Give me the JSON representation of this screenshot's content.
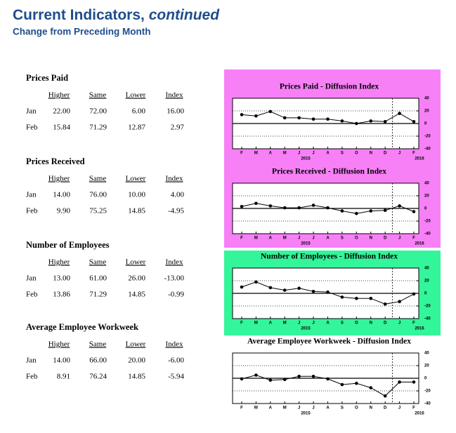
{
  "header": {
    "title": "Current Indicators,",
    "title_emphasis": "continued",
    "subtitle": "Change from Preceding Month"
  },
  "sections": [
    {
      "heading": "Prices Paid",
      "columns": [
        "Higher",
        "Same",
        "Lower",
        "Index"
      ],
      "rows": [
        [
          "Jan",
          "22.00",
          "72.00",
          "6.00",
          "16.00"
        ],
        [
          "Feb",
          "15.84",
          "71.29",
          "12.87",
          "2.97"
        ]
      ]
    },
    {
      "heading": "Prices Received",
      "columns": [
        "Higher",
        "Same",
        "Lower",
        "Index"
      ],
      "rows": [
        [
          "Jan",
          "14.00",
          "76.00",
          "10.00",
          "4.00"
        ],
        [
          "Feb",
          "9.90",
          "75.25",
          "14.85",
          "-4.95"
        ]
      ]
    },
    {
      "heading": "Number of Employees",
      "columns": [
        "Higher",
        "Same",
        "Lower",
        "Index"
      ],
      "rows": [
        [
          "Jan",
          "13.00",
          "61.00",
          "26.00",
          "-13.00"
        ],
        [
          "Feb",
          "13.86",
          "71.29",
          "14.85",
          "-0.99"
        ]
      ]
    },
    {
      "heading": "Average Employee Workweek",
      "columns": [
        "Higher",
        "Same",
        "Lower",
        "Index"
      ],
      "rows": [
        [
          "Jan",
          "14.00",
          "66.00",
          "20.00",
          "-6.00"
        ],
        [
          "Feb",
          "8.91",
          "76.24",
          "14.85",
          "-5.94"
        ]
      ]
    }
  ],
  "charts": [
    {
      "type": "line",
      "title": "Prices Paid - Diffusion Index",
      "background": "#f780f7",
      "categories": [
        "F",
        "M",
        "A",
        "M",
        "J",
        "J",
        "A",
        "S",
        "O",
        "N",
        "D",
        "J",
        "F"
      ],
      "year_labels": [
        "2015",
        "2016"
      ],
      "values": [
        14,
        12,
        19,
        9,
        9,
        7,
        7,
        4,
        0,
        4,
        3,
        16,
        3
      ],
      "ylim": [
        -40,
        40
      ],
      "yticks": [
        40,
        20,
        0,
        -20,
        -40
      ]
    },
    {
      "type": "line",
      "title": "Prices Received - Diffusion Index",
      "background": "#f780f7",
      "categories": [
        "F",
        "M",
        "A",
        "M",
        "J",
        "J",
        "A",
        "S",
        "O",
        "N",
        "D",
        "J",
        "F"
      ],
      "year_labels": [
        "2015",
        "2016"
      ],
      "values": [
        3,
        8,
        4,
        1,
        1,
        5,
        1,
        -4,
        -8,
        -4,
        -3,
        4,
        -5
      ],
      "ylim": [
        -40,
        40
      ],
      "yticks": [
        40,
        20,
        0,
        -20,
        -40
      ]
    },
    {
      "type": "line",
      "title": "Number of Employees - Diffusion Index",
      "background": "#33f59a",
      "categories": [
        "F",
        "M",
        "A",
        "M",
        "J",
        "J",
        "A",
        "S",
        "O",
        "N",
        "D",
        "J",
        "F"
      ],
      "year_labels": [
        "2015",
        "2016"
      ],
      "values": [
        10,
        18,
        9,
        5,
        8,
        3,
        2,
        -6,
        -8,
        -8,
        -17,
        -13,
        -1
      ],
      "ylim": [
        -40,
        40
      ],
      "yticks": [
        40,
        20,
        0,
        -20,
        -40
      ]
    },
    {
      "type": "line",
      "title": "Average Employee Workweek - Diffusion Index",
      "background": "#ffffff",
      "categories": [
        "F",
        "M",
        "A",
        "M",
        "J",
        "J",
        "A",
        "S",
        "O",
        "N",
        "D",
        "J",
        "F"
      ],
      "year_labels": [
        "2015",
        "2016"
      ],
      "values": [
        -1,
        5,
        -3,
        -2,
        3,
        3,
        -1,
        -10,
        -8,
        -15,
        -28,
        -6,
        -6
      ],
      "ylim": [
        -40,
        40
      ],
      "yticks": [
        40,
        20,
        0,
        -20,
        -40
      ]
    }
  ]
}
